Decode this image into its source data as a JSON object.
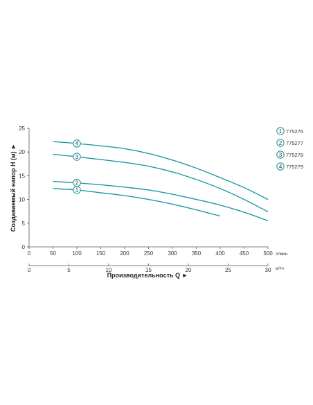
{
  "chart_data": {
    "type": "line",
    "ylabel": "Создаваемый напор H (м)",
    "ylabel_arrow": "►",
    "xlabel": "Производительность Q",
    "xlabel_arrow": "►",
    "x_unit": "л/мин",
    "x2_unit": "м³/ч",
    "x_range": [
      0,
      500
    ],
    "y_range": [
      0,
      25
    ],
    "x_ticks": [
      0,
      50,
      100,
      150,
      200,
      250,
      300,
      350,
      400,
      450,
      500
    ],
    "y_ticks": [
      0,
      5,
      10,
      15,
      20,
      25
    ],
    "x2_ticks": [
      0,
      5,
      10,
      15,
      20,
      25,
      30
    ],
    "grid": false,
    "legend_position": "right",
    "line_color": "#1f9aa6",
    "series": [
      {
        "name": "775276",
        "number": "1",
        "marker_x": 100,
        "points": [
          [
            50,
            12.3
          ],
          [
            100,
            12.0
          ],
          [
            150,
            11.4
          ],
          [
            200,
            10.8
          ],
          [
            250,
            10.0
          ],
          [
            300,
            9.0
          ],
          [
            350,
            7.8
          ],
          [
            400,
            6.5
          ]
        ]
      },
      {
        "name": "775277",
        "number": "2",
        "marker_x": 100,
        "points": [
          [
            50,
            13.8
          ],
          [
            100,
            13.5
          ],
          [
            150,
            13.1
          ],
          [
            200,
            12.6
          ],
          [
            250,
            12.0
          ],
          [
            300,
            11.1
          ],
          [
            350,
            10.0
          ],
          [
            400,
            8.8
          ],
          [
            450,
            7.3
          ],
          [
            500,
            5.5
          ]
        ]
      },
      {
        "name": "775278",
        "number": "3",
        "marker_x": 100,
        "points": [
          [
            50,
            19.5
          ],
          [
            100,
            19.0
          ],
          [
            150,
            18.4
          ],
          [
            200,
            17.8
          ],
          [
            250,
            17.0
          ],
          [
            300,
            15.8
          ],
          [
            350,
            14.2
          ],
          [
            400,
            12.3
          ],
          [
            450,
            10.0
          ],
          [
            500,
            7.4
          ]
        ]
      },
      {
        "name": "775279",
        "number": "4",
        "marker_x": 100,
        "points": [
          [
            50,
            22.2
          ],
          [
            100,
            21.8
          ],
          [
            150,
            21.3
          ],
          [
            200,
            20.7
          ],
          [
            250,
            19.7
          ],
          [
            300,
            18.3
          ],
          [
            350,
            16.6
          ],
          [
            400,
            14.6
          ],
          [
            450,
            12.5
          ],
          [
            500,
            10.0
          ]
        ]
      }
    ]
  }
}
